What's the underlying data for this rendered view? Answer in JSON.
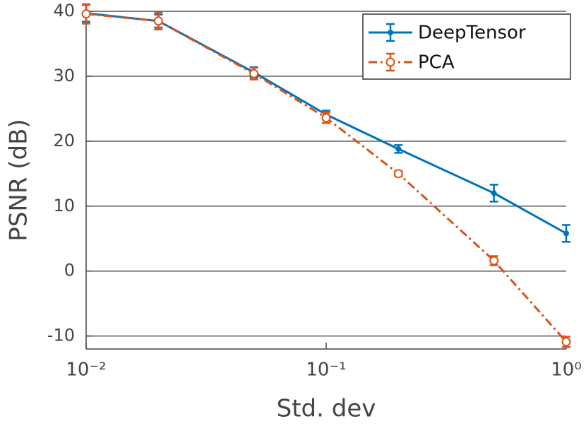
{
  "chart_data": {
    "type": "line",
    "xlabel": "Std. dev",
    "ylabel": "PSNR (dB)",
    "x": [
      0.01,
      0.02,
      0.05,
      0.1,
      0.2,
      0.5,
      1
    ],
    "series": [
      {
        "name": "DeepTensor",
        "color": "#0072bd",
        "marker": "dot",
        "dash": "solid",
        "values": [
          39.7,
          38.5,
          30.6,
          24.1,
          18.8,
          12.0,
          5.8
        ],
        "errors": [
          1.3,
          1.0,
          0.8,
          0.6,
          0.6,
          1.3,
          1.3
        ]
      },
      {
        "name": "PCA",
        "color": "#d95319",
        "marker": "circle",
        "dash": "dashdot",
        "values": [
          39.6,
          38.5,
          30.4,
          23.6,
          15.0,
          1.6,
          -10.9
        ],
        "errors": [
          1.5,
          1.3,
          0.9,
          0.8,
          0.4,
          0.7,
          0.8
        ]
      }
    ],
    "xscale": "log",
    "xlim": [
      0.01,
      1
    ],
    "xticks": [
      {
        "value": 0.01,
        "label": "10⁻²"
      },
      {
        "value": 0.1,
        "label": "10⁻¹"
      },
      {
        "value": 1,
        "label": "10⁰"
      }
    ],
    "ylim": [
      -12,
      40
    ],
    "yticks": [
      40,
      30,
      20,
      10,
      0,
      -10
    ],
    "grid": "y",
    "legend": "upper right"
  }
}
